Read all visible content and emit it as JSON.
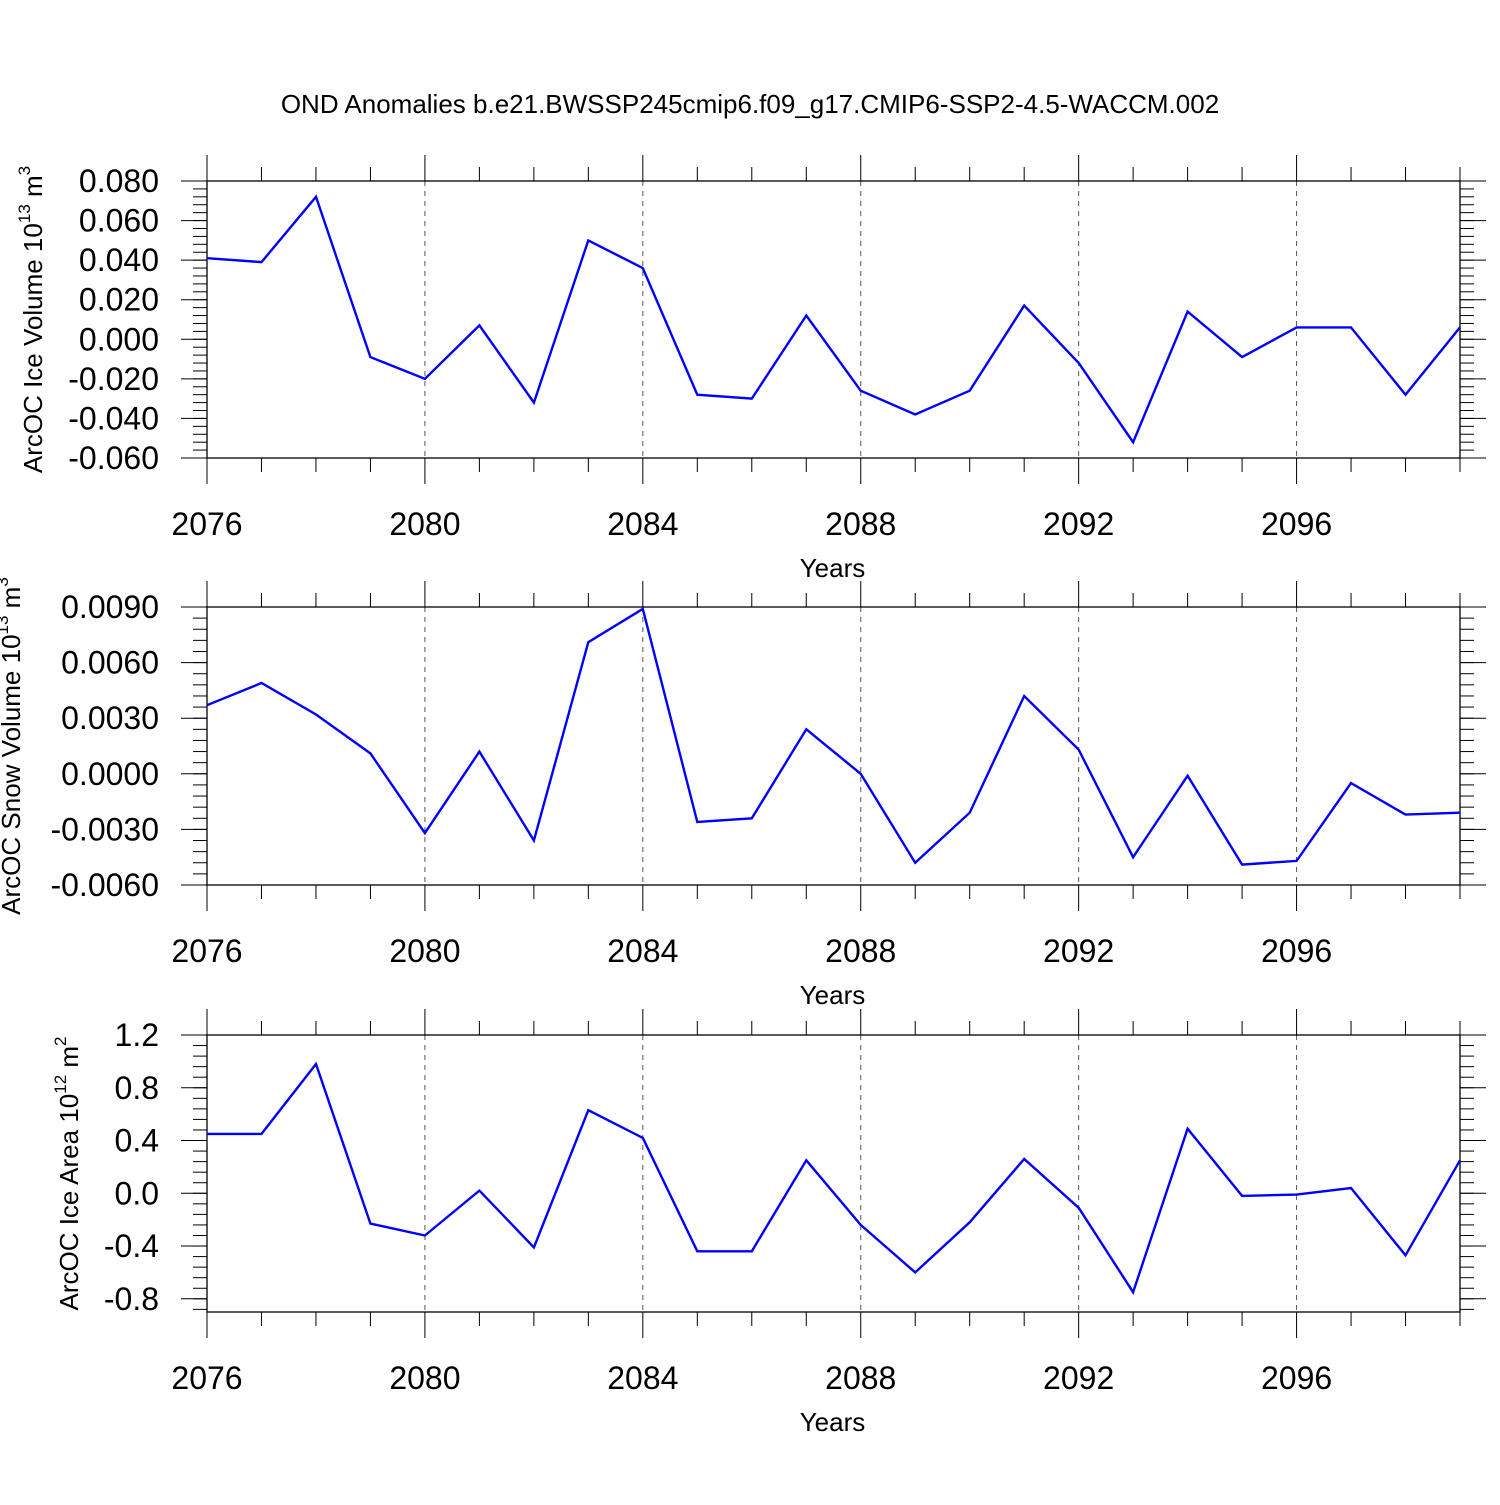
{
  "title": "OND Anomalies b.e21.BWSSP245cmip6.f09_g17.CMIP6-SSP2-4.5-WACCM.002",
  "chart_data": [
    {
      "type": "line",
      "xlabel": "Years",
      "ylabel_text": "ArcOC Ice Volume 10",
      "ylabel_exp": "13",
      "ylabel_unit": " m",
      "ylabel_unit_exp": "3",
      "xlim": [
        2076,
        2099
      ],
      "ylim": [
        -0.06,
        0.08
      ],
      "x_ticks": [
        "2076",
        "2080",
        "2084",
        "2088",
        "2092",
        "2096"
      ],
      "y_ticks": [
        "-0.060",
        "-0.040",
        "-0.020",
        "0.000",
        "0.020",
        "0.040",
        "0.060",
        "0.080"
      ],
      "color": "#0000ff",
      "x": [
        2076,
        2077,
        2078,
        2079,
        2080,
        2081,
        2082,
        2083,
        2084,
        2085,
        2086,
        2087,
        2088,
        2089,
        2090,
        2091,
        2092,
        2093,
        2094,
        2095,
        2096,
        2097,
        2098,
        2099
      ],
      "values": [
        0.041,
        0.039,
        0.072,
        -0.009,
        -0.02,
        0.007,
        -0.032,
        0.05,
        0.036,
        -0.028,
        -0.03,
        0.012,
        -0.026,
        -0.038,
        -0.026,
        0.017,
        -0.012,
        -0.052,
        0.014,
        -0.009,
        0.006,
        0.006,
        -0.028,
        0.006
      ]
    },
    {
      "type": "line",
      "xlabel": "Years",
      "ylabel_text": "ArcOC Snow Volume 10",
      "ylabel_exp": "13",
      "ylabel_unit": " m",
      "ylabel_unit_exp": "3",
      "xlim": [
        2076,
        2099
      ],
      "ylim": [
        -0.006,
        0.009
      ],
      "x_ticks": [
        "2076",
        "2080",
        "2084",
        "2088",
        "2092",
        "2096"
      ],
      "y_ticks": [
        "-0.0060",
        "-0.0030",
        "0.0000",
        "0.0030",
        "0.0060",
        "0.0090"
      ],
      "color": "#0000ff",
      "x": [
        2076,
        2077,
        2078,
        2079,
        2080,
        2081,
        2082,
        2083,
        2084,
        2085,
        2086,
        2087,
        2088,
        2089,
        2090,
        2091,
        2092,
        2093,
        2094,
        2095,
        2096,
        2097,
        2098,
        2099
      ],
      "values": [
        0.0037,
        0.0049,
        0.0032,
        0.0011,
        -0.0032,
        0.0012,
        -0.0036,
        0.0071,
        0.0089,
        -0.0026,
        -0.0024,
        0.0024,
        0.0,
        -0.0048,
        -0.0021,
        0.0042,
        0.0013,
        -0.0045,
        -0.0001,
        -0.0049,
        -0.0047,
        -0.0005,
        -0.0022,
        -0.0021
      ]
    },
    {
      "type": "line",
      "xlabel": "Years",
      "ylabel_text": "ArcOC Ice Area 10",
      "ylabel_exp": "12",
      "ylabel_unit": " m",
      "ylabel_unit_exp": "2",
      "xlim": [
        2076,
        2099
      ],
      "ylim": [
        -0.9,
        1.2
      ],
      "x_ticks": [
        "2076",
        "2080",
        "2084",
        "2088",
        "2092",
        "2096"
      ],
      "y_ticks": [
        "-0.8",
        "-0.4",
        "0.0",
        "0.4",
        "0.8",
        "1.2"
      ],
      "color": "#0000ff",
      "x": [
        2076,
        2077,
        2078,
        2079,
        2080,
        2081,
        2082,
        2083,
        2084,
        2085,
        2086,
        2087,
        2088,
        2089,
        2090,
        2091,
        2092,
        2093,
        2094,
        2095,
        2096,
        2097,
        2098,
        2099
      ],
      "values": [
        0.45,
        0.45,
        0.98,
        -0.23,
        -0.32,
        0.02,
        -0.41,
        0.63,
        0.42,
        -0.44,
        -0.44,
        0.25,
        -0.24,
        -0.6,
        -0.22,
        0.26,
        -0.11,
        -0.75,
        0.49,
        -0.02,
        -0.01,
        0.04,
        -0.47,
        0.25
      ]
    }
  ]
}
